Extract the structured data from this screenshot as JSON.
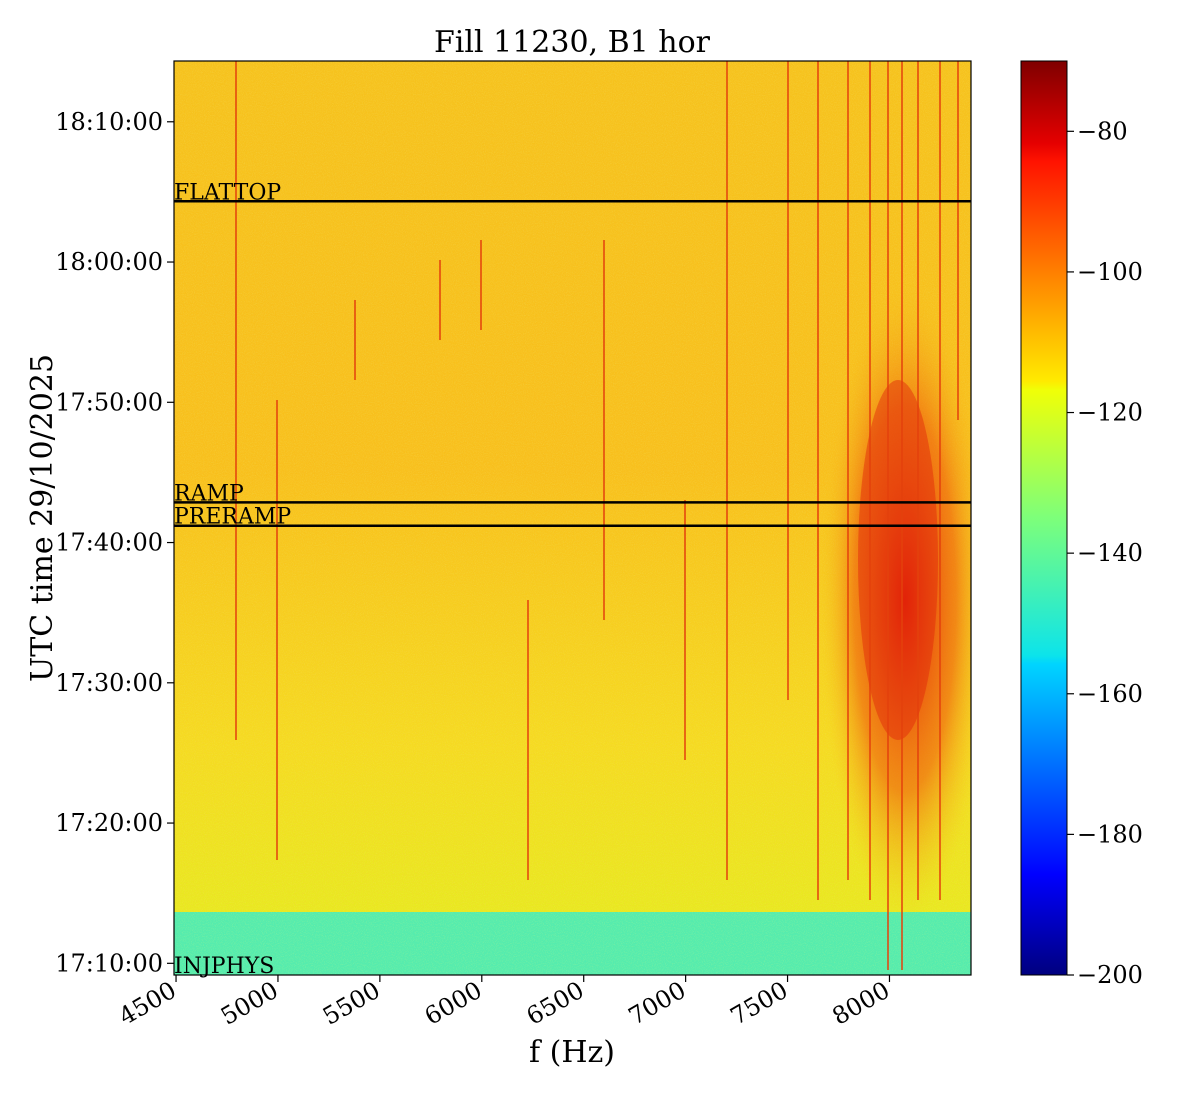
{
  "chart_data": {
    "type": "heatmap",
    "title": "Fill 11230, B1 hor",
    "xlabel": "f (Hz)",
    "ylabel": "UTC time 29/10/2025",
    "x_ticks": [
      4500,
      5000,
      5500,
      6000,
      6500,
      7000,
      7500,
      8000
    ],
    "xlim": [
      4490,
      8400
    ],
    "y_ticks": [
      "17:10:00",
      "17:20:00",
      "17:30:00",
      "17:40:00",
      "17:50:00",
      "18:00:00",
      "18:10:00"
    ],
    "ylim": [
      "17:09:10",
      "18:14:20"
    ],
    "colorbar": {
      "colormap": "jet",
      "vmin": -200,
      "vmax": -70,
      "ticks": [
        -80,
        -100,
        -120,
        -140,
        -160,
        -180,
        -200
      ]
    },
    "phases": [
      {
        "label": "FLATTOP",
        "time": "18:04:20"
      },
      {
        "label": "RAMP",
        "time": "17:42:52"
      },
      {
        "label": "PRERAMP",
        "time": "17:41:12"
      },
      {
        "label": "INJPHYS",
        "time": "17:09:10"
      }
    ],
    "colors": {
      "background_level": "#f6c21c",
      "quiet_level": "#5cf0a6",
      "active_level": "#e8280a",
      "phase_line": "#000000"
    }
  }
}
